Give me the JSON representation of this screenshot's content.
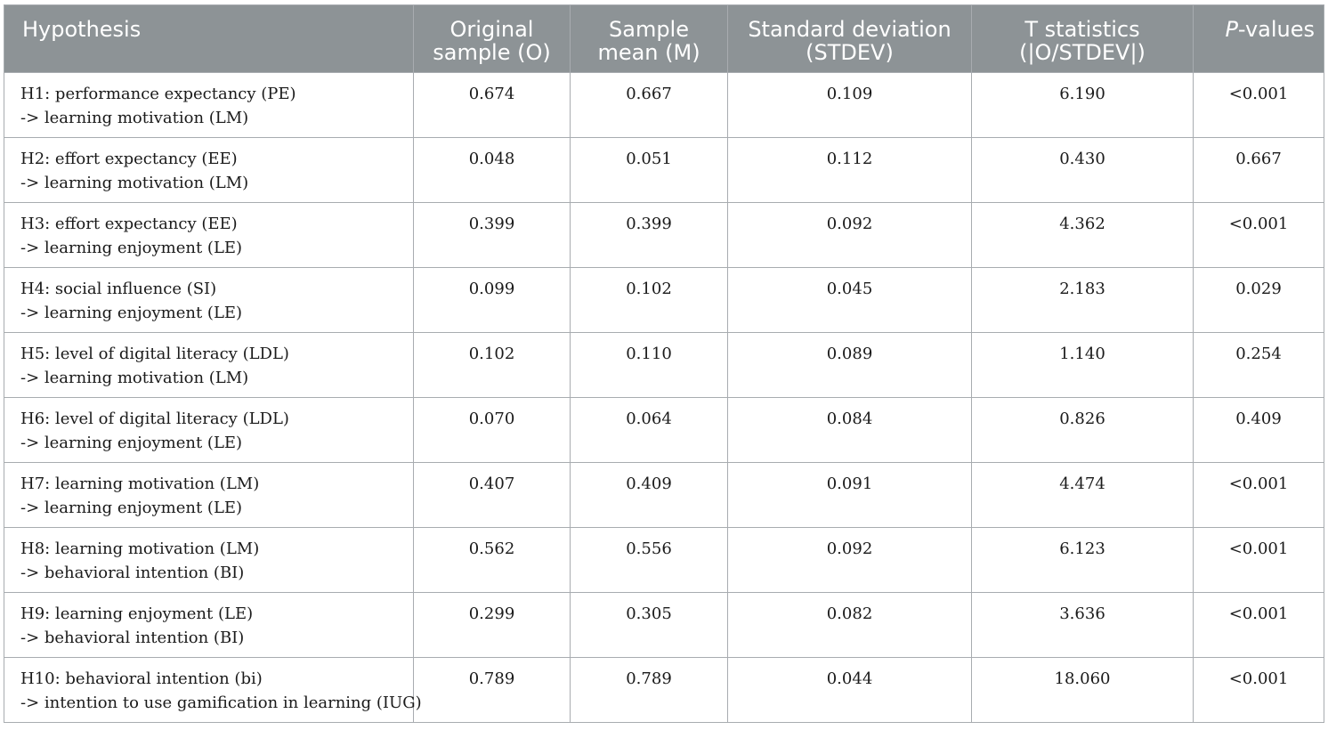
{
  "table": {
    "headers": {
      "hypothesis": "Hypothesis",
      "original_line1": "Original",
      "original_line2": "sample (O)",
      "mean_line1": "Sample",
      "mean_line2": "mean (M)",
      "stdev_line1": "Standard deviation",
      "stdev_line2": "(STDEV)",
      "tstat_line1": "T statistics",
      "tstat_line2": "(|O/STDEV|)",
      "p_italic": "P",
      "p_rest": "-values"
    },
    "rows": [
      {
        "hyp_line1": "H1: performance expectancy (PE)",
        "hyp_line2": "-> learning motivation (LM)",
        "original": "0.674",
        "mean": "0.667",
        "stdev": "0.109",
        "t": "6.190",
        "p": "<0.001"
      },
      {
        "hyp_line1": "H2: effort expectancy (EE)",
        "hyp_line2": "-> learning motivation (LM)",
        "original": "0.048",
        "mean": "0.051",
        "stdev": "0.112",
        "t": "0.430",
        "p": "0.667"
      },
      {
        "hyp_line1": "H3: effort expectancy (EE)",
        "hyp_line2": "-> learning enjoyment (LE)",
        "original": "0.399",
        "mean": "0.399",
        "stdev": "0.092",
        "t": "4.362",
        "p": "<0.001"
      },
      {
        "hyp_line1": "H4: social influence (SI)",
        "hyp_line2": "-> learning enjoyment (LE)",
        "original": "0.099",
        "mean": "0.102",
        "stdev": "0.045",
        "t": "2.183",
        "p": "0.029"
      },
      {
        "hyp_line1": "H5: level of digital literacy (LDL)",
        "hyp_line2": "-> learning motivation (LM)",
        "original": "0.102",
        "mean": "0.110",
        "stdev": "0.089",
        "t": "1.140",
        "p": "0.254"
      },
      {
        "hyp_line1": "H6: level of digital literacy (LDL)",
        "hyp_line2": "-> learning enjoyment (LE)",
        "original": "0.070",
        "mean": "0.064",
        "stdev": "0.084",
        "t": "0.826",
        "p": "0.409"
      },
      {
        "hyp_line1": "H7: learning motivation (LM)",
        "hyp_line2": "-> learning enjoyment (LE)",
        "original": "0.407",
        "mean": "0.409",
        "stdev": "0.091",
        "t": "4.474",
        "p": "<0.001"
      },
      {
        "hyp_line1": "H8: learning motivation (LM)",
        "hyp_line2": "-> behavioral intention (BI)",
        "original": "0.562",
        "mean": "0.556",
        "stdev": "0.092",
        "t": "6.123",
        "p": "<0.001"
      },
      {
        "hyp_line1": "H9: learning enjoyment (LE)",
        "hyp_line2": "-> behavioral intention (BI)",
        "original": "0.299",
        "mean": "0.305",
        "stdev": "0.082",
        "t": "3.636",
        "p": "<0.001"
      },
      {
        "hyp_line1": "H10: behavioral intention (bi)",
        "hyp_line2": "-> intention to use gamification in learning (IUG)",
        "original": "0.789",
        "mean": "0.789",
        "stdev": "0.044",
        "t": "18.060",
        "p": "<0.001"
      }
    ]
  },
  "colors": {
    "header_background": "#8d9396",
    "header_text": "#ffffff",
    "border": "#a8acb0",
    "body_text": "#1a1a1a"
  }
}
